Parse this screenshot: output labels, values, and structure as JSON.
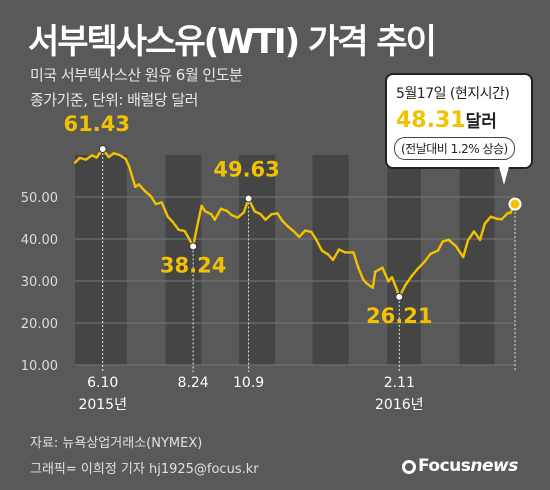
{
  "header": {
    "title": "서부텍사스유(WTI) 가격 추이",
    "subtitle_line1": "미국 서부텍사스산 원유 6월 인도분",
    "subtitle_line2": "종가기준, 단위: 배럴당 달러"
  },
  "callout": {
    "date_line": "5월17일 (현지시간)",
    "value": "48.31",
    "unit": "달러",
    "change_line": "(전날대비 1.2% 상승)"
  },
  "footer": {
    "source": "자료: 뉴욕상업거래소(NYMEX)",
    "credit": "그래픽= 이희정 기자 hj1925@focus.kr",
    "logo": "Focus",
    "logo_suffix": "news"
  },
  "colors": {
    "background": "#595959",
    "line": "#f2c200",
    "label_highlight": "#f2c200",
    "band_dark": "#454545"
  },
  "chart_data": {
    "type": "line",
    "y_ticks": [
      10.0,
      20.0,
      30.0,
      40.0,
      50.0
    ],
    "y_tick_labels": [
      "10.00",
      "20.00",
      "30.00",
      "40.00",
      "50.00"
    ],
    "ylim": [
      10,
      60
    ],
    "x_ticks": [
      {
        "date": "2015-06-10",
        "label": "6.10",
        "year_label": "2015년"
      },
      {
        "date": "2015-08-24",
        "label": "8.24",
        "year_label": ""
      },
      {
        "date": "2015-10-09",
        "label": "10.9",
        "year_label": ""
      },
      {
        "date": "2016-02-11",
        "label": "2.11",
        "year_label": "2016년"
      }
    ],
    "annotations": [
      {
        "date": "2015-06-10",
        "label": "61.43",
        "value": 61.43
      },
      {
        "date": "2015-08-24",
        "label": "38.24",
        "value": 38.24
      },
      {
        "date": "2015-10-09",
        "label": "49.63",
        "value": 49.63
      },
      {
        "date": "2016-02-11",
        "label": "26.21",
        "value": 26.21
      },
      {
        "date": "2016-05-17",
        "label": "48.31",
        "value": 48.31
      }
    ],
    "series": [
      {
        "points": [
          [
            "2015-05-18",
            58.2
          ],
          [
            "2015-05-22",
            59.3
          ],
          [
            "2015-05-27",
            58.9
          ],
          [
            "2015-06-01",
            59.9
          ],
          [
            "2015-06-05",
            59.4
          ],
          [
            "2015-06-10",
            61.43
          ],
          [
            "2015-06-15",
            59.5
          ],
          [
            "2015-06-19",
            60.4
          ],
          [
            "2015-06-24",
            60.0
          ],
          [
            "2015-06-29",
            59.1
          ],
          [
            "2015-07-02",
            57.2
          ],
          [
            "2015-07-07",
            52.4
          ],
          [
            "2015-07-10",
            53.0
          ],
          [
            "2015-07-15",
            51.4
          ],
          [
            "2015-07-20",
            50.2
          ],
          [
            "2015-07-24",
            48.3
          ],
          [
            "2015-07-29",
            48.7
          ],
          [
            "2015-08-03",
            45.3
          ],
          [
            "2015-08-07",
            44.1
          ],
          [
            "2015-08-12",
            42.2
          ],
          [
            "2015-08-17",
            41.9
          ],
          [
            "2015-08-20",
            40.4
          ],
          [
            "2015-08-24",
            38.24
          ],
          [
            "2015-08-27",
            42.6
          ],
          [
            "2015-08-31",
            47.9
          ],
          [
            "2015-09-03",
            46.6
          ],
          [
            "2015-09-08",
            45.9
          ],
          [
            "2015-09-11",
            44.6
          ],
          [
            "2015-09-16",
            47.2
          ],
          [
            "2015-09-21",
            46.7
          ],
          [
            "2015-09-25",
            45.7
          ],
          [
            "2015-09-30",
            45.1
          ],
          [
            "2015-10-05",
            46.3
          ],
          [
            "2015-10-09",
            49.63
          ],
          [
            "2015-10-14",
            46.6
          ],
          [
            "2015-10-19",
            45.9
          ],
          [
            "2015-10-23",
            44.6
          ],
          [
            "2015-10-28",
            45.9
          ],
          [
            "2015-11-02",
            46.1
          ],
          [
            "2015-11-06",
            44.3
          ],
          [
            "2015-11-11",
            42.9
          ],
          [
            "2015-11-16",
            41.7
          ],
          [
            "2015-11-20",
            40.5
          ],
          [
            "2015-11-25",
            42.0
          ],
          [
            "2015-11-30",
            41.7
          ],
          [
            "2015-12-04",
            39.9
          ],
          [
            "2015-12-09",
            37.2
          ],
          [
            "2015-12-14",
            36.3
          ],
          [
            "2015-12-18",
            35.0
          ],
          [
            "2015-12-23",
            37.5
          ],
          [
            "2015-12-28",
            36.8
          ],
          [
            "2016-01-04",
            36.8
          ],
          [
            "2016-01-08",
            33.2
          ],
          [
            "2016-01-12",
            30.4
          ],
          [
            "2016-01-15",
            29.4
          ],
          [
            "2016-01-20",
            28.4
          ],
          [
            "2016-01-22",
            32.2
          ],
          [
            "2016-01-28",
            33.2
          ],
          [
            "2016-02-02",
            29.9
          ],
          [
            "2016-02-05",
            30.9
          ],
          [
            "2016-02-09",
            27.9
          ],
          [
            "2016-02-11",
            26.21
          ],
          [
            "2016-02-16",
            29.0
          ],
          [
            "2016-02-22",
            31.4
          ],
          [
            "2016-02-26",
            32.8
          ],
          [
            "2016-03-03",
            34.6
          ],
          [
            "2016-03-08",
            36.5
          ],
          [
            "2016-03-14",
            37.2
          ],
          [
            "2016-03-18",
            39.4
          ],
          [
            "2016-03-23",
            39.8
          ],
          [
            "2016-03-29",
            38.3
          ],
          [
            "2016-04-04",
            35.7
          ],
          [
            "2016-04-08",
            39.7
          ],
          [
            "2016-04-13",
            41.8
          ],
          [
            "2016-04-18",
            39.8
          ],
          [
            "2016-04-22",
            43.7
          ],
          [
            "2016-04-27",
            45.3
          ],
          [
            "2016-05-02",
            44.8
          ],
          [
            "2016-05-06",
            44.7
          ],
          [
            "2016-05-11",
            46.2
          ],
          [
            "2016-05-13",
            46.2
          ],
          [
            "2016-05-17",
            48.31
          ]
        ]
      }
    ],
    "bands": [
      {
        "from": "2015-05-18",
        "to": "2015-06-30"
      },
      {
        "from": "2015-08-01",
        "to": "2015-08-31"
      },
      {
        "from": "2015-10-01",
        "to": "2015-10-31"
      },
      {
        "from": "2015-12-01",
        "to": "2015-12-31"
      },
      {
        "from": "2016-02-01",
        "to": "2016-02-29"
      },
      {
        "from": "2016-04-01",
        "to": "2016-04-30"
      }
    ],
    "x_range": [
      "2015-05-18",
      "2016-05-17"
    ]
  }
}
